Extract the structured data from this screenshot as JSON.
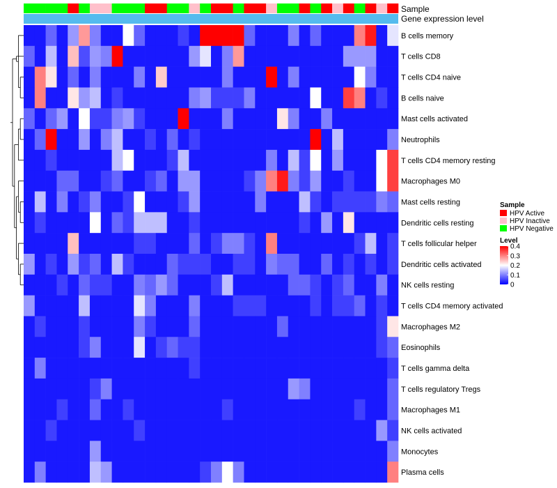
{
  "chart_data": {
    "type": "heatmap",
    "title": "",
    "annotation_labels": [
      "Sample",
      "Gene expression level"
    ],
    "rows": [
      "B cells memory",
      "T cells CD8",
      "T cells CD4 naive",
      "B cells naive",
      "Mast cells activated",
      "Neutrophils",
      "T cells CD4 memory resting",
      "Macrophages M0",
      "Mast cells resting",
      "Dendritic cells resting",
      "T cells follicular helper",
      "Dendritic cells activated",
      "NK cells resting",
      "T cells CD4 memory activated",
      "Macrophages M2",
      "Eosinophils",
      "T cells gamma delta",
      "T cells regulatory  Tregs",
      "Macrophages M1",
      "NK cells activated",
      "Monocytes",
      "Plasma cells"
    ],
    "sample_groups": [
      "N",
      "N",
      "N",
      "N",
      "A",
      "N",
      "I",
      "I",
      "N",
      "N",
      "N",
      "A",
      "A",
      "N",
      "N",
      "I",
      "N",
      "A",
      "A",
      "N",
      "A",
      "A",
      "I",
      "N",
      "N",
      "A",
      "N",
      "A",
      "I",
      "A",
      "N",
      "A",
      "I",
      "A"
    ],
    "gene_expression_level": "uniform",
    "values": [
      [
        0.02,
        0.02,
        0.08,
        0.02,
        0.12,
        0.28,
        0.1,
        0.02,
        0.02,
        0.2,
        0.08,
        0.02,
        0.02,
        0.02,
        0.05,
        0.02,
        0.4,
        0.4,
        0.4,
        0.4,
        0.08,
        0.02,
        0.02,
        0.02,
        0.1,
        0.02,
        0.08,
        0.02,
        0.02,
        0.02,
        0.3,
        0.38,
        0.02,
        0.18
      ],
      [
        0.08,
        0.02,
        0.15,
        0.02,
        0.25,
        0.06,
        0.12,
        0.1,
        0.4,
        0.02,
        0.02,
        0.02,
        0.02,
        0.02,
        0.02,
        0.12,
        0.18,
        0.02,
        0.1,
        0.28,
        0.02,
        0.02,
        0.02,
        0.02,
        0.02,
        0.02,
        0.02,
        0.02,
        0.02,
        0.12,
        0.12,
        0.12,
        0.02,
        0.02
      ],
      [
        0.02,
        0.3,
        0.22,
        0.02,
        0.08,
        0.02,
        0.1,
        0.02,
        0.02,
        0.02,
        0.1,
        0.02,
        0.24,
        0.02,
        0.02,
        0.02,
        0.02,
        0.02,
        0.1,
        0.02,
        0.02,
        0.02,
        0.4,
        0.02,
        0.1,
        0.02,
        0.02,
        0.02,
        0.02,
        0.02,
        0.2,
        0.1,
        0.02,
        0.02
      ],
      [
        0.02,
        0.3,
        0.02,
        0.02,
        0.22,
        0.12,
        0.15,
        0.02,
        0.05,
        0.02,
        0.02,
        0.02,
        0.02,
        0.02,
        0.02,
        0.1,
        0.12,
        0.05,
        0.05,
        0.05,
        0.1,
        0.02,
        0.02,
        0.02,
        0.02,
        0.02,
        0.2,
        0.02,
        0.02,
        0.35,
        0.3,
        0.02,
        0.05,
        0.02
      ],
      [
        0.08,
        0.02,
        0.08,
        0.12,
        0.02,
        0.2,
        0.05,
        0.05,
        0.1,
        0.12,
        0.05,
        0.02,
        0.02,
        0.02,
        0.4,
        0.02,
        0.02,
        0.02,
        0.1,
        0.02,
        0.02,
        0.02,
        0.02,
        0.22,
        0.1,
        0.02,
        0.02,
        0.1,
        0.02,
        0.02,
        0.02,
        0.02,
        0.02,
        0.02
      ],
      [
        0.02,
        0.08,
        0.4,
        0.02,
        0.02,
        0.12,
        0.02,
        0.1,
        0.15,
        0.02,
        0.02,
        0.05,
        0.02,
        0.08,
        0.02,
        0.05,
        0.02,
        0.02,
        0.02,
        0.02,
        0.02,
        0.02,
        0.02,
        0.02,
        0.02,
        0.02,
        0.4,
        0.02,
        0.15,
        0.02,
        0.02,
        0.02,
        0.02,
        0.1
      ],
      [
        0.02,
        0.02,
        0.05,
        0.02,
        0.02,
        0.02,
        0.02,
        0.02,
        0.15,
        0.2,
        0.02,
        0.02,
        0.02,
        0.05,
        0.15,
        0.02,
        0.02,
        0.02,
        0.02,
        0.02,
        0.02,
        0.02,
        0.1,
        0.02,
        0.15,
        0.05,
        0.2,
        0.02,
        0.12,
        0.02,
        0.02,
        0.02,
        0.2,
        0.35
      ],
      [
        0.02,
        0.02,
        0.02,
        0.08,
        0.08,
        0.02,
        0.02,
        0.05,
        0.08,
        0.02,
        0.02,
        0.05,
        0.08,
        0.02,
        0.12,
        0.12,
        0.02,
        0.02,
        0.02,
        0.02,
        0.05,
        0.1,
        0.3,
        0.38,
        0.1,
        0.05,
        0.12,
        0.02,
        0.02,
        0.05,
        0.02,
        0.02,
        0.2,
        0.35
      ],
      [
        0.02,
        0.15,
        0.02,
        0.1,
        0.02,
        0.05,
        0.1,
        0.02,
        0.02,
        0.05,
        0.2,
        0.02,
        0.02,
        0.02,
        0.05,
        0.12,
        0.02,
        0.02,
        0.02,
        0.02,
        0.02,
        0.1,
        0.02,
        0.02,
        0.02,
        0.15,
        0.05,
        0.02,
        0.05,
        0.05,
        0.05,
        0.05,
        0.1,
        0.08
      ],
      [
        0.02,
        0.05,
        0.02,
        0.02,
        0.02,
        0.02,
        0.2,
        0.02,
        0.08,
        0.05,
        0.15,
        0.15,
        0.15,
        0.02,
        0.02,
        0.05,
        0.02,
        0.02,
        0.02,
        0.02,
        0.02,
        0.02,
        0.02,
        0.02,
        0.02,
        0.05,
        0.02,
        0.12,
        0.02,
        0.22,
        0.02,
        0.02,
        0.02,
        0.02
      ],
      [
        0.02,
        0.02,
        0.02,
        0.02,
        0.25,
        0.02,
        0.02,
        0.02,
        0.02,
        0.02,
        0.05,
        0.05,
        0.02,
        0.02,
        0.02,
        0.08,
        0.02,
        0.05,
        0.1,
        0.1,
        0.05,
        0.02,
        0.3,
        0.02,
        0.02,
        0.02,
        0.02,
        0.02,
        0.02,
        0.02,
        0.05,
        0.15,
        0.02,
        0.05
      ],
      [
        0.12,
        0.02,
        0.05,
        0.02,
        0.12,
        0.05,
        0.08,
        0.02,
        0.15,
        0.05,
        0.02,
        0.02,
        0.02,
        0.08,
        0.05,
        0.05,
        0.05,
        0.02,
        0.02,
        0.05,
        0.05,
        0.02,
        0.1,
        0.08,
        0.08,
        0.02,
        0.02,
        0.08,
        0.02,
        0.05,
        0.02,
        0.05,
        0.02,
        0.05
      ],
      [
        0.02,
        0.02,
        0.02,
        0.05,
        0.02,
        0.08,
        0.05,
        0.05,
        0.02,
        0.02,
        0.1,
        0.08,
        0.12,
        0.08,
        0.02,
        0.02,
        0.02,
        0.05,
        0.15,
        0.02,
        0.02,
        0.02,
        0.02,
        0.02,
        0.08,
        0.08,
        0.05,
        0.02,
        0.05,
        0.08,
        0.02,
        0.02,
        0.1,
        0.02
      ],
      [
        0.12,
        0.02,
        0.02,
        0.02,
        0.02,
        0.15,
        0.02,
        0.02,
        0.02,
        0.02,
        0.18,
        0.1,
        0.02,
        0.02,
        0.02,
        0.1,
        0.02,
        0.02,
        0.02,
        0.05,
        0.05,
        0.05,
        0.02,
        0.02,
        0.02,
        0.02,
        0.05,
        0.02,
        0.05,
        0.05,
        0.08,
        0.02,
        0.05,
        0.02
      ],
      [
        0.02,
        0.05,
        0.02,
        0.02,
        0.02,
        0.05,
        0.02,
        0.02,
        0.02,
        0.02,
        0.1,
        0.05,
        0.02,
        0.02,
        0.02,
        0.08,
        0.02,
        0.02,
        0.02,
        0.02,
        0.02,
        0.02,
        0.02,
        0.08,
        0.02,
        0.02,
        0.02,
        0.02,
        0.02,
        0.02,
        0.02,
        0.02,
        0.05,
        0.22
      ],
      [
        0.02,
        0.02,
        0.02,
        0.02,
        0.02,
        0.05,
        0.1,
        0.02,
        0.02,
        0.02,
        0.18,
        0.02,
        0.05,
        0.08,
        0.05,
        0.05,
        0.02,
        0.02,
        0.02,
        0.02,
        0.02,
        0.02,
        0.02,
        0.02,
        0.02,
        0.02,
        0.02,
        0.02,
        0.02,
        0.02,
        0.02,
        0.02,
        0.05,
        0.08
      ],
      [
        0.02,
        0.1,
        0.02,
        0.02,
        0.02,
        0.02,
        0.02,
        0.02,
        0.02,
        0.02,
        0.02,
        0.02,
        0.02,
        0.02,
        0.02,
        0.05,
        0.02,
        0.02,
        0.02,
        0.02,
        0.02,
        0.02,
        0.02,
        0.02,
        0.02,
        0.02,
        0.02,
        0.02,
        0.02,
        0.02,
        0.02,
        0.02,
        0.02,
        0.05
      ],
      [
        0.02,
        0.02,
        0.02,
        0.02,
        0.02,
        0.02,
        0.05,
        0.1,
        0.02,
        0.02,
        0.02,
        0.02,
        0.02,
        0.02,
        0.02,
        0.02,
        0.02,
        0.02,
        0.02,
        0.02,
        0.02,
        0.02,
        0.02,
        0.02,
        0.12,
        0.1,
        0.02,
        0.02,
        0.02,
        0.02,
        0.02,
        0.02,
        0.02,
        0.08
      ],
      [
        0.02,
        0.02,
        0.02,
        0.05,
        0.02,
        0.02,
        0.08,
        0.02,
        0.02,
        0.05,
        0.02,
        0.02,
        0.02,
        0.02,
        0.02,
        0.02,
        0.02,
        0.02,
        0.05,
        0.02,
        0.02,
        0.02,
        0.02,
        0.02,
        0.02,
        0.02,
        0.02,
        0.02,
        0.02,
        0.02,
        0.05,
        0.02,
        0.02,
        0.08
      ],
      [
        0.02,
        0.02,
        0.05,
        0.02,
        0.02,
        0.02,
        0.02,
        0.02,
        0.02,
        0.02,
        0.05,
        0.02,
        0.02,
        0.02,
        0.02,
        0.02,
        0.02,
        0.02,
        0.02,
        0.02,
        0.02,
        0.02,
        0.02,
        0.02,
        0.02,
        0.02,
        0.02,
        0.02,
        0.02,
        0.02,
        0.02,
        0.02,
        0.12,
        0.05
      ],
      [
        0.02,
        0.02,
        0.02,
        0.02,
        0.02,
        0.02,
        0.12,
        0.02,
        0.02,
        0.02,
        0.02,
        0.02,
        0.02,
        0.02,
        0.02,
        0.02,
        0.02,
        0.02,
        0.02,
        0.02,
        0.02,
        0.02,
        0.02,
        0.02,
        0.02,
        0.02,
        0.02,
        0.02,
        0.02,
        0.02,
        0.02,
        0.02,
        0.02,
        0.1
      ],
      [
        0.02,
        0.1,
        0.02,
        0.02,
        0.02,
        0.02,
        0.15,
        0.12,
        0.02,
        0.02,
        0.02,
        0.02,
        0.02,
        0.02,
        0.02,
        0.02,
        0.05,
        0.1,
        0.2,
        0.1,
        0.02,
        0.02,
        0.02,
        0.02,
        0.02,
        0.02,
        0.02,
        0.02,
        0.02,
        0.02,
        0.02,
        0.02,
        0.02,
        0.3
      ]
    ],
    "legend": {
      "sample_title": "Sample",
      "sample_entries": [
        {
          "key": "A",
          "label": "HPV Active",
          "color": "#FF0000"
        },
        {
          "key": "I",
          "label": "HPV Inactive",
          "color": "#FFC0CB"
        },
        {
          "key": "N",
          "label": "HPV Negative",
          "color": "#00FF00"
        }
      ],
      "level_title": "Level",
      "level_ticks": [
        "0.4",
        "0.3",
        "0.2",
        "0.1",
        "0"
      ],
      "level_range": [
        0,
        0.4
      ]
    },
    "colors": {
      "low": "#0000FF",
      "mid": "#FFFFFF",
      "high": "#FF0000",
      "gene_expression_bar": "#55BBEE"
    }
  }
}
